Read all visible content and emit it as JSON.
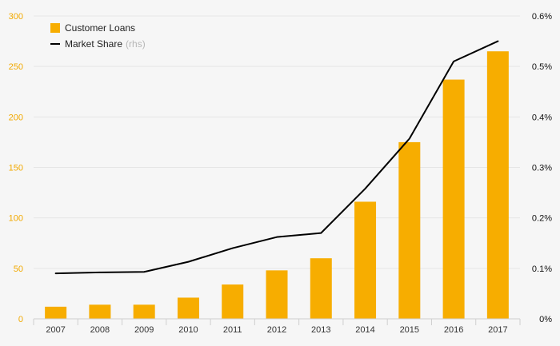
{
  "chart_data": {
    "type": "bar",
    "categories": [
      "2007",
      "2008",
      "2009",
      "2010",
      "2011",
      "2012",
      "2013",
      "2014",
      "2015",
      "2016",
      "2017"
    ],
    "series": [
      {
        "name": "Customer Loans",
        "values": [
          12,
          14,
          14,
          21,
          34,
          48,
          60,
          116,
          175,
          237,
          265
        ],
        "color": "#f7ad00",
        "axis": "left"
      },
      {
        "name": "Market Share",
        "values": [
          0.0009,
          0.00092,
          0.00093,
          0.00113,
          0.0014,
          0.00162,
          0.0017,
          0.00258,
          0.00357,
          0.0051,
          0.0055
        ],
        "color": "#000000",
        "axis": "right",
        "type": "line"
      }
    ],
    "legend": [
      {
        "label": "Customer Loans",
        "suffix": ""
      },
      {
        "label": "Market Share",
        "suffix": "(rhs)"
      }
    ],
    "ylim_left": [
      0,
      300
    ],
    "ylim_right": [
      0,
      0.006
    ],
    "left_ticks": [
      0,
      50,
      100,
      150,
      200,
      250,
      300
    ],
    "right_ticks": [
      "0%",
      "0.1%",
      "0.2%",
      "0.3%",
      "0.4%",
      "0.5%",
      "0.6%"
    ],
    "grid": true,
    "legend_position": "top-left"
  }
}
